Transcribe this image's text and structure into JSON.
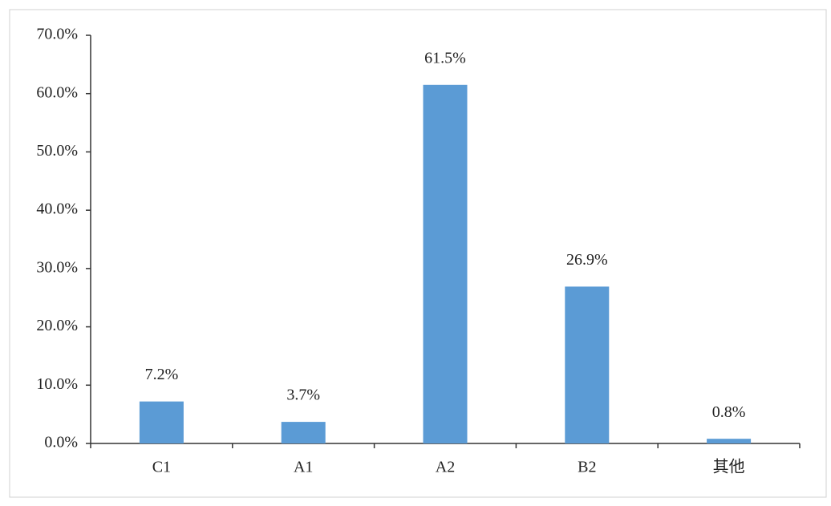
{
  "chart_data": {
    "type": "bar",
    "categories": [
      "C1",
      "A1",
      "A2",
      "B2",
      "其他"
    ],
    "values": [
      7.2,
      3.7,
      61.5,
      26.9,
      0.8
    ],
    "value_labels": [
      "7.2%",
      "3.7%",
      "61.5%",
      "26.9%",
      "0.8%"
    ],
    "color": "#5b9bd5",
    "ylim": [
      0,
      70
    ],
    "yticks": [
      {
        "value": 0,
        "label": "0.0%"
      },
      {
        "value": 10,
        "label": "10.0%"
      },
      {
        "value": 20,
        "label": "20.0%"
      },
      {
        "value": 30,
        "label": "30.0%"
      },
      {
        "value": 40,
        "label": "40.0%"
      },
      {
        "value": 50,
        "label": "50.0%"
      },
      {
        "value": 60,
        "label": "60.0%"
      },
      {
        "value": 70,
        "label": "70.0%"
      }
    ],
    "grid": false
  }
}
